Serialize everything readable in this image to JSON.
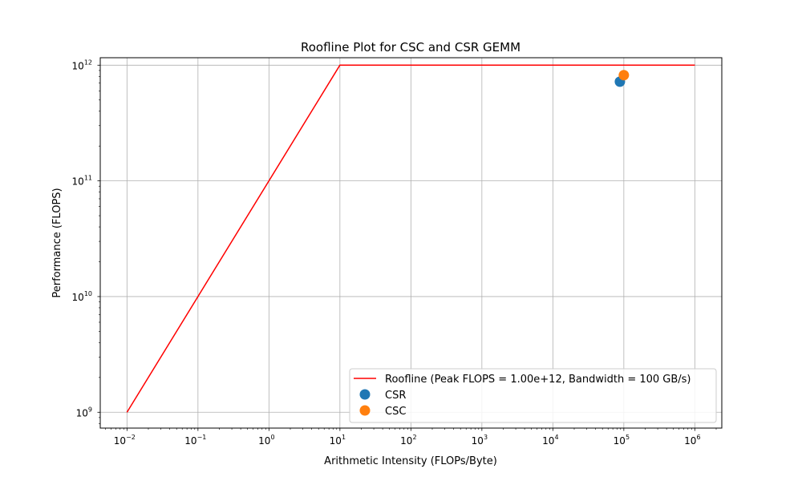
{
  "chart_data": {
    "type": "scatter",
    "title": "Roofline Plot for CSC and CSR GEMM",
    "xlabel": "Arithmetic Intensity (FLOPs/Byte)",
    "ylabel": "Performance (FLOPS)",
    "x_scale": "log",
    "y_scale": "log",
    "xlim": [
      0.0042,
      2400000
    ],
    "ylim": [
      730000000,
      1160000000000
    ],
    "grid": true,
    "legend_position": "lower-right",
    "x_ticks": [
      {
        "value": 0.01,
        "base": "10",
        "exp": "−2"
      },
      {
        "value": 0.1,
        "base": "10",
        "exp": "−1"
      },
      {
        "value": 1,
        "base": "10",
        "exp": "0"
      },
      {
        "value": 10,
        "base": "10",
        "exp": "1"
      },
      {
        "value": 100,
        "base": "10",
        "exp": "2"
      },
      {
        "value": 1000,
        "base": "10",
        "exp": "3"
      },
      {
        "value": 10000,
        "base": "10",
        "exp": "4"
      },
      {
        "value": 100000,
        "base": "10",
        "exp": "5"
      },
      {
        "value": 1000000,
        "base": "10",
        "exp": "6"
      }
    ],
    "y_ticks": [
      {
        "value": 1000000000,
        "base": "10",
        "exp": "9"
      },
      {
        "value": 10000000000,
        "base": "10",
        "exp": "10"
      },
      {
        "value": 100000000000,
        "base": "10",
        "exp": "11"
      },
      {
        "value": 1000000000000,
        "base": "10",
        "exp": "12"
      }
    ],
    "series": [
      {
        "name": "Roofline (Peak FLOPS = 1.00e+12, Bandwidth = 100 GB/s)",
        "kind": "line",
        "color": "#ff0000",
        "points": [
          {
            "x": 0.01,
            "y": 1000000000
          },
          {
            "x": 10,
            "y": 1000000000000
          },
          {
            "x": 1000000,
            "y": 1000000000000
          }
        ]
      },
      {
        "name": "CSR",
        "kind": "scatter",
        "color": "#1f77b4",
        "points": [
          {
            "x": 88000,
            "y": 720000000000
          }
        ]
      },
      {
        "name": "CSC",
        "kind": "scatter",
        "color": "#ff7f0e",
        "points": [
          {
            "x": 100000,
            "y": 820000000000
          }
        ]
      }
    ]
  }
}
